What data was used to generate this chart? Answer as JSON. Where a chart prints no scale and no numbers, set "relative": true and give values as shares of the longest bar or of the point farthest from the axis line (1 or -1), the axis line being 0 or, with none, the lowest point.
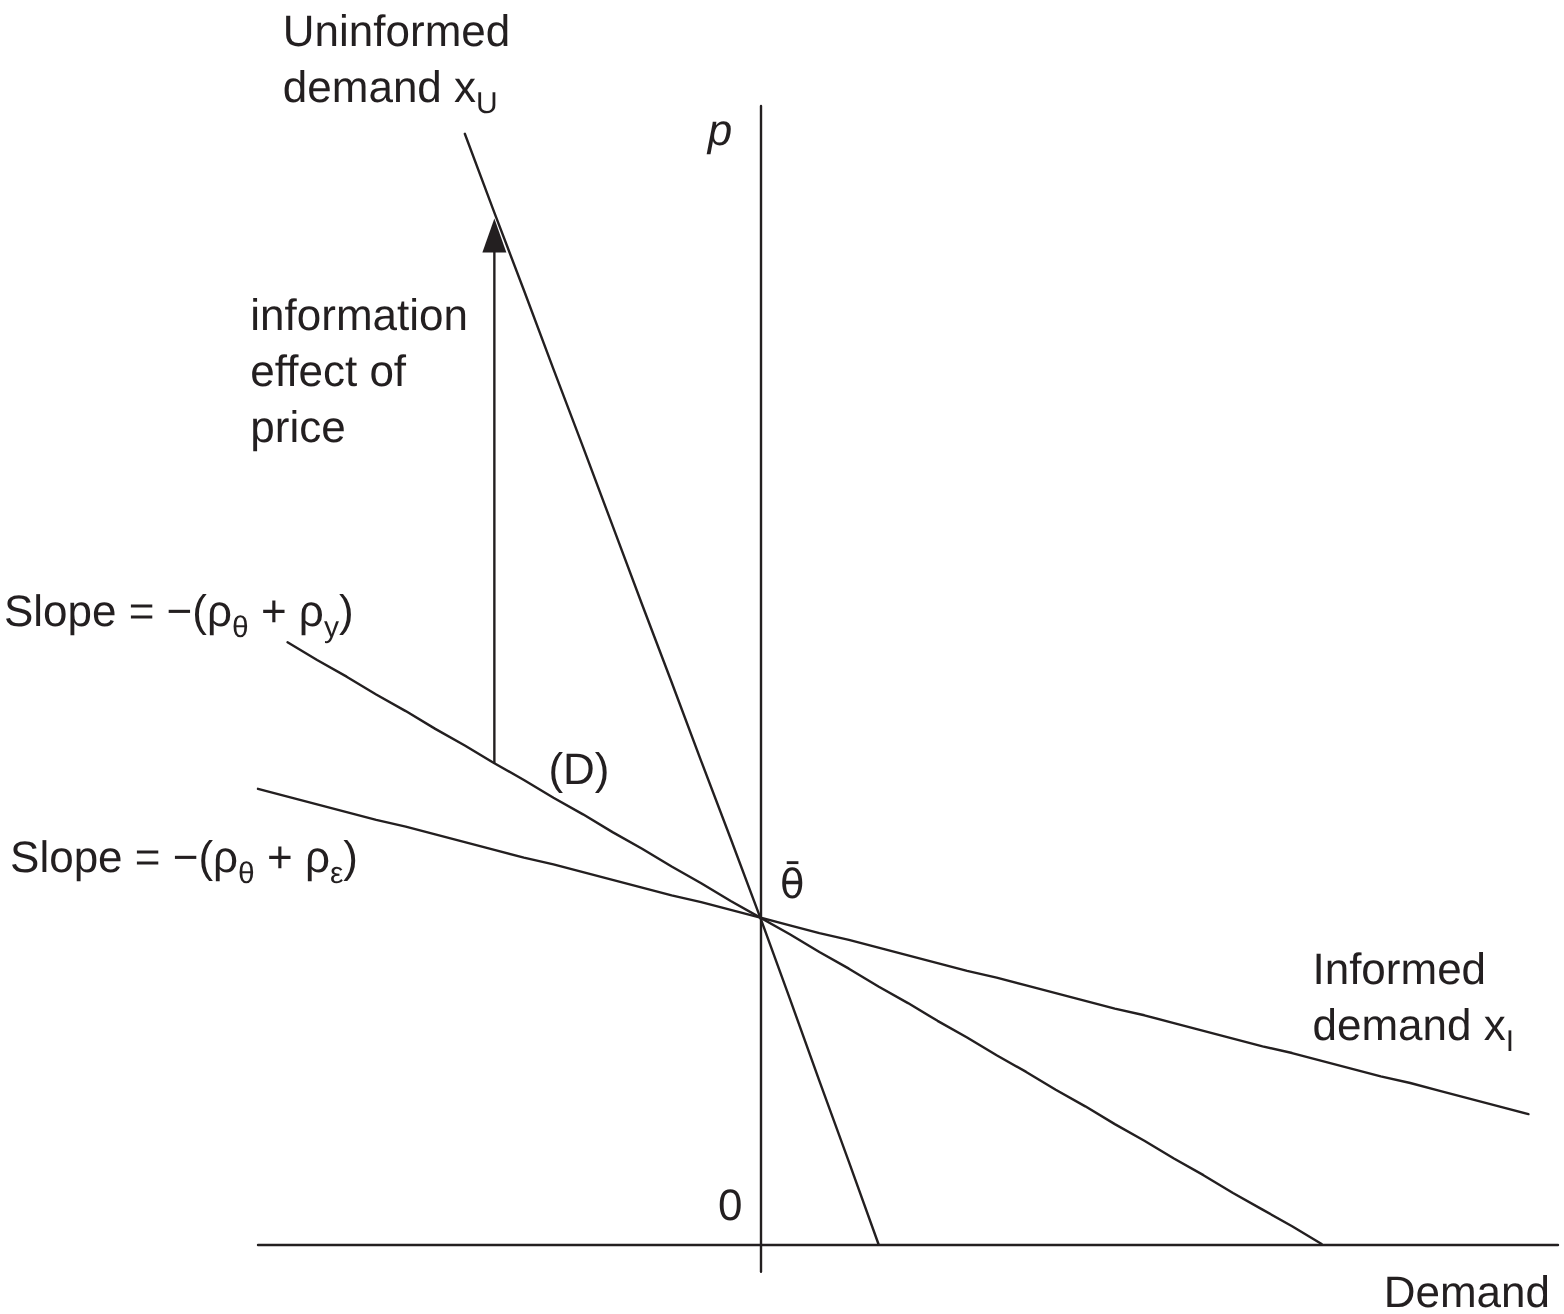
{
  "chart_data": {
    "type": "line",
    "relative": true,
    "xlabel": "Demand",
    "ylabel": "p",
    "marker": "none",
    "line_style": "solid",
    "categories": [
      null,
      null,
      null,
      null,
      null,
      null,
      null,
      null,
      null,
      null,
      null,
      null,
      null,
      null,
      null,
      null,
      null,
      null,
      null,
      null,
      null,
      null,
      null,
      null,
      null,
      null,
      null,
      null,
      null,
      null,
      null,
      null,
      null,
      null,
      null,
      null,
      null,
      null,
      null,
      null,
      null,
      null,
      null,
      null,
      null
    ],
    "series": [
      {
        "name": "Uninformed demand x$_{U}$",
        "color": "#231f20",
        "values": [
          null,
          null,
          null,
          null,
          null,
          null,
          null,
          1,
          0.929,
          0.859,
          0.788,
          0.718,
          0.647,
          0.576,
          0.506,
          0.435,
          0.365,
          0.294,
          0.221,
          0.147,
          0.074,
          0,
          null,
          null,
          null,
          null,
          null,
          null,
          null,
          null,
          null,
          null,
          null,
          null,
          null,
          null,
          null,
          null,
          null,
          null,
          null,
          null,
          null,
          null,
          null
        ]
      },
      {
        "color": "#231f20",
        "values": [
          null,
          0.542,
          0.526,
          0.511,
          0.495,
          0.48,
          0.464,
          0.449,
          0.433,
          0.418,
          0.402,
          0.387,
          0.371,
          0.356,
          0.34,
          0.325,
          0.309,
          0.294,
          0.279,
          0.263,
          0.248,
          0.232,
          0.217,
          0.201,
          0.186,
          0.17,
          0.155,
          0.139,
          0.124,
          0.108,
          0.093,
          0.077,
          0.062,
          0.046,
          0.031,
          0.016,
          0,
          null,
          null,
          null,
          null,
          null,
          null,
          null,
          null
        ]
      },
      {
        "name": "Informed demand x$_{I}$",
        "color": "#231f20",
        "values": [
          0.41,
          0.403,
          0.396,
          0.389,
          0.382,
          0.376,
          0.369,
          0.362,
          0.355,
          0.348,
          0.342,
          0.335,
          0.328,
          0.321,
          0.314,
          0.308,
          0.301,
          0.294,
          0.287,
          0.28,
          0.274,
          0.267,
          0.26,
          0.253,
          0.246,
          0.24,
          0.233,
          0.226,
          0.219,
          0.212,
          0.206,
          0.199,
          0.192,
          0.185,
          0.178,
          0.172,
          0.165,
          0.158,
          0.151,
          0.145,
          0.138,
          0.131,
          0.124,
          0.117,
          null
        ]
      }
    ],
    "annotations": [
      "information effect of price",
      "Slope = −(ρ$_{θ}$ + ρ$_{y}$)",
      "(D)",
      "Slope = −(ρ$_{θ}$ + ρ$_{ε}$)",
      "θ̄",
      "0"
    ]
  }
}
